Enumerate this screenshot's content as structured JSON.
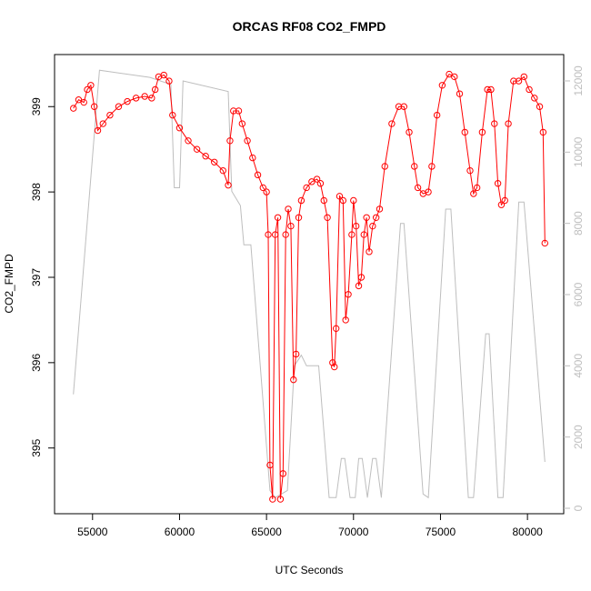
{
  "chart_data": {
    "type": "line",
    "title": "ORCAS RF08 CO2_FMPD",
    "x_label": "UTC Seconds",
    "y_label": "CO2_FMPD",
    "xlim": [
      52816,
      82084
    ],
    "xticks": [
      55000,
      60000,
      65000,
      70000,
      75000,
      80000
    ],
    "ylim": [
      394.23,
      399.61
    ],
    "yticks": [
      395,
      396,
      397,
      398,
      399
    ],
    "y2lim": [
      -153,
      12740
    ],
    "y2ticks": [
      0,
      2000,
      4000,
      6000,
      8000,
      10000,
      12000
    ],
    "series": [
      {
        "color": "#ff0000",
        "markers": true,
        "x": [
          53900,
          54200,
          54500,
          54700,
          54900,
          55100,
          55300,
          55600,
          56000,
          56500,
          57000,
          57500,
          58000,
          58400,
          58600,
          58800,
          59100,
          59400,
          59600,
          60000,
          60500,
          61000,
          61500,
          62000,
          62500,
          62800,
          62900,
          63100,
          63400,
          63600,
          63900,
          64200,
          64500,
          64800,
          65000,
          65100,
          65200,
          65350,
          65500,
          65650,
          65800,
          65950,
          66100,
          66250,
          66400,
          66550,
          66700,
          66850,
          67000,
          67300,
          67600,
          67900,
          68100,
          68300,
          68500,
          68800,
          68900,
          69000,
          69200,
          69400,
          69550,
          69700,
          69900,
          70000,
          70150,
          70300,
          70450,
          70600,
          70750,
          70900,
          71100,
          71300,
          71500,
          71800,
          72200,
          72600,
          72900,
          73200,
          73500,
          73700,
          74000,
          74300,
          74500,
          74800,
          75100,
          75500,
          75800,
          76100,
          76400,
          76700,
          76900,
          77100,
          77400,
          77700,
          77900,
          78100,
          78300,
          78500,
          78700,
          78900,
          79200,
          79500,
          79800,
          80100,
          80400,
          80700,
          80900,
          81000
        ],
        "values": [
          398.98,
          399.08,
          399.05,
          399.2,
          399.25,
          399.0,
          398.72,
          398.8,
          398.9,
          399.0,
          399.06,
          399.1,
          399.12,
          399.1,
          399.2,
          399.35,
          399.37,
          399.3,
          398.9,
          398.75,
          398.6,
          398.5,
          398.42,
          398.35,
          398.25,
          398.08,
          398.6,
          398.95,
          398.95,
          398.8,
          398.6,
          398.4,
          398.2,
          398.05,
          398.0,
          397.5,
          394.8,
          394.4,
          397.5,
          397.7,
          394.4,
          394.7,
          397.5,
          397.8,
          397.6,
          395.8,
          396.1,
          397.7,
          397.9,
          398.05,
          398.12,
          398.15,
          398.1,
          397.9,
          397.7,
          396.0,
          395.95,
          396.4,
          397.95,
          397.9,
          396.5,
          396.8,
          397.5,
          397.9,
          397.6,
          396.9,
          397.0,
          397.5,
          397.7,
          397.3,
          397.6,
          397.7,
          397.8,
          398.3,
          398.8,
          399.0,
          399.0,
          398.7,
          398.3,
          398.05,
          397.98,
          398.0,
          398.3,
          398.9,
          399.25,
          399.38,
          399.35,
          399.15,
          398.7,
          398.25,
          397.98,
          398.05,
          398.7,
          399.2,
          399.2,
          398.8,
          398.1,
          397.85,
          397.9,
          398.8,
          399.3,
          399.3,
          399.35,
          399.2,
          399.1,
          399.0,
          398.7,
          397.4
        ]
      },
      {
        "color": "#bebebe",
        "axis": "y2",
        "markers": false,
        "x": [
          53900,
          55400,
          58300,
          59500,
          59700,
          60000,
          60200,
          62800,
          63000,
          63500,
          63700,
          64100,
          65200,
          65500,
          66200,
          66600,
          67000,
          67300,
          68000,
          68600,
          69000,
          69300,
          69500,
          69800,
          70100,
          70300,
          70500,
          70800,
          71100,
          71300,
          71600,
          72700,
          72900,
          74000,
          74300,
          75300,
          75600,
          76600,
          76900,
          77600,
          77800,
          78300,
          78600,
          79500,
          79800,
          81000
        ],
        "values": [
          3200,
          12300,
          12100,
          11900,
          9000,
          9000,
          12000,
          11700,
          8900,
          8500,
          7400,
          7400,
          500,
          300,
          500,
          4000,
          4300,
          4000,
          4000,
          300,
          300,
          1400,
          1400,
          300,
          300,
          1400,
          1400,
          300,
          1400,
          1400,
          300,
          8000,
          8000,
          400,
          300,
          8400,
          8400,
          300,
          300,
          4900,
          4900,
          300,
          300,
          8600,
          8600,
          1300
        ]
      }
    ]
  }
}
